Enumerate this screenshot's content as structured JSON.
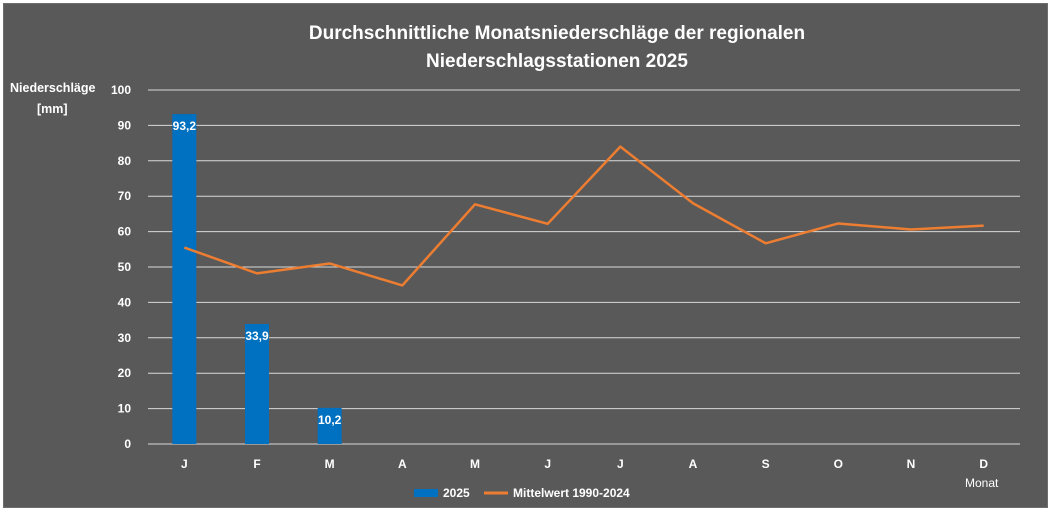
{
  "chart_data": {
    "type": "bar",
    "title_line1": "Durchschnittliche Monatsniederschläge der regionalen",
    "title_line2": "Niederschlagsstationen 2025",
    "ylabel_line1": "Niederschläge",
    "ylabel_line2": "[mm]",
    "xlabel": "Monat",
    "ylim": [
      0,
      100
    ],
    "yticks": [
      0,
      10,
      20,
      30,
      40,
      50,
      60,
      70,
      80,
      90,
      100
    ],
    "grid": true,
    "legend_position": "bottom",
    "categories": [
      "J",
      "F",
      "M",
      "A",
      "M",
      "J",
      "J",
      "A",
      "S",
      "O",
      "N",
      "D"
    ],
    "series": [
      {
        "name": "2025",
        "kind": "bar",
        "color": "#0070c0",
        "values": [
          93.2,
          33.9,
          10.2,
          null,
          null,
          null,
          null,
          null,
          null,
          null,
          null,
          null
        ],
        "labels": [
          "93,2",
          "33,9",
          "10,2"
        ]
      },
      {
        "name": "Mittelwert 1990-2024",
        "kind": "line",
        "color": "#ed7d31",
        "values": [
          55.5,
          48.2,
          51.0,
          44.8,
          67.7,
          62.2,
          84.0,
          68.0,
          56.7,
          62.3,
          60.6,
          61.7
        ]
      }
    ]
  },
  "colors": {
    "background": "#595959",
    "gridline": "#d9d9d9",
    "text": "#ffffff"
  }
}
